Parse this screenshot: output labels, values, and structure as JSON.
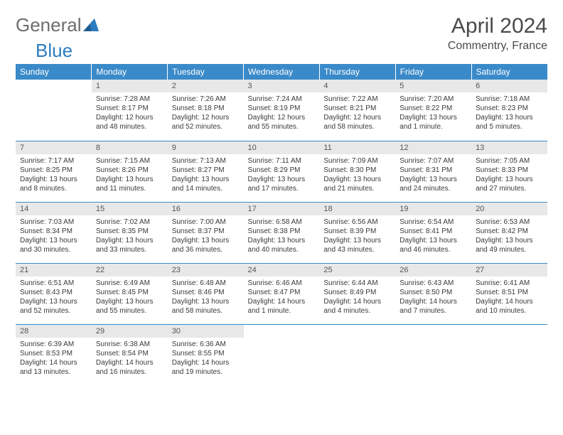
{
  "brand": {
    "part1": "General",
    "part2": "Blue"
  },
  "title": "April 2024",
  "location": "Commentry, France",
  "colors": {
    "header_bg": "#3a8ac9",
    "header_text": "#ffffff",
    "daynum_bg": "#e8e8e8",
    "text": "#3a3a3a",
    "brand_gray": "#6e6e6e",
    "brand_blue": "#2b7bbf",
    "rule": "#3a8ac9"
  },
  "weekdays": [
    "Sunday",
    "Monday",
    "Tuesday",
    "Wednesday",
    "Thursday",
    "Friday",
    "Saturday"
  ],
  "weeks": [
    [
      null,
      {
        "n": "1",
        "sr": "Sunrise: 7:28 AM",
        "ss": "Sunset: 8:17 PM",
        "dl1": "Daylight: 12 hours",
        "dl2": "and 48 minutes."
      },
      {
        "n": "2",
        "sr": "Sunrise: 7:26 AM",
        "ss": "Sunset: 8:18 PM",
        "dl1": "Daylight: 12 hours",
        "dl2": "and 52 minutes."
      },
      {
        "n": "3",
        "sr": "Sunrise: 7:24 AM",
        "ss": "Sunset: 8:19 PM",
        "dl1": "Daylight: 12 hours",
        "dl2": "and 55 minutes."
      },
      {
        "n": "4",
        "sr": "Sunrise: 7:22 AM",
        "ss": "Sunset: 8:21 PM",
        "dl1": "Daylight: 12 hours",
        "dl2": "and 58 minutes."
      },
      {
        "n": "5",
        "sr": "Sunrise: 7:20 AM",
        "ss": "Sunset: 8:22 PM",
        "dl1": "Daylight: 13 hours",
        "dl2": "and 1 minute."
      },
      {
        "n": "6",
        "sr": "Sunrise: 7:18 AM",
        "ss": "Sunset: 8:23 PM",
        "dl1": "Daylight: 13 hours",
        "dl2": "and 5 minutes."
      }
    ],
    [
      {
        "n": "7",
        "sr": "Sunrise: 7:17 AM",
        "ss": "Sunset: 8:25 PM",
        "dl1": "Daylight: 13 hours",
        "dl2": "and 8 minutes."
      },
      {
        "n": "8",
        "sr": "Sunrise: 7:15 AM",
        "ss": "Sunset: 8:26 PM",
        "dl1": "Daylight: 13 hours",
        "dl2": "and 11 minutes."
      },
      {
        "n": "9",
        "sr": "Sunrise: 7:13 AM",
        "ss": "Sunset: 8:27 PM",
        "dl1": "Daylight: 13 hours",
        "dl2": "and 14 minutes."
      },
      {
        "n": "10",
        "sr": "Sunrise: 7:11 AM",
        "ss": "Sunset: 8:29 PM",
        "dl1": "Daylight: 13 hours",
        "dl2": "and 17 minutes."
      },
      {
        "n": "11",
        "sr": "Sunrise: 7:09 AM",
        "ss": "Sunset: 8:30 PM",
        "dl1": "Daylight: 13 hours",
        "dl2": "and 21 minutes."
      },
      {
        "n": "12",
        "sr": "Sunrise: 7:07 AM",
        "ss": "Sunset: 8:31 PM",
        "dl1": "Daylight: 13 hours",
        "dl2": "and 24 minutes."
      },
      {
        "n": "13",
        "sr": "Sunrise: 7:05 AM",
        "ss": "Sunset: 8:33 PM",
        "dl1": "Daylight: 13 hours",
        "dl2": "and 27 minutes."
      }
    ],
    [
      {
        "n": "14",
        "sr": "Sunrise: 7:03 AM",
        "ss": "Sunset: 8:34 PM",
        "dl1": "Daylight: 13 hours",
        "dl2": "and 30 minutes."
      },
      {
        "n": "15",
        "sr": "Sunrise: 7:02 AM",
        "ss": "Sunset: 8:35 PM",
        "dl1": "Daylight: 13 hours",
        "dl2": "and 33 minutes."
      },
      {
        "n": "16",
        "sr": "Sunrise: 7:00 AM",
        "ss": "Sunset: 8:37 PM",
        "dl1": "Daylight: 13 hours",
        "dl2": "and 36 minutes."
      },
      {
        "n": "17",
        "sr": "Sunrise: 6:58 AM",
        "ss": "Sunset: 8:38 PM",
        "dl1": "Daylight: 13 hours",
        "dl2": "and 40 minutes."
      },
      {
        "n": "18",
        "sr": "Sunrise: 6:56 AM",
        "ss": "Sunset: 8:39 PM",
        "dl1": "Daylight: 13 hours",
        "dl2": "and 43 minutes."
      },
      {
        "n": "19",
        "sr": "Sunrise: 6:54 AM",
        "ss": "Sunset: 8:41 PM",
        "dl1": "Daylight: 13 hours",
        "dl2": "and 46 minutes."
      },
      {
        "n": "20",
        "sr": "Sunrise: 6:53 AM",
        "ss": "Sunset: 8:42 PM",
        "dl1": "Daylight: 13 hours",
        "dl2": "and 49 minutes."
      }
    ],
    [
      {
        "n": "21",
        "sr": "Sunrise: 6:51 AM",
        "ss": "Sunset: 8:43 PM",
        "dl1": "Daylight: 13 hours",
        "dl2": "and 52 minutes."
      },
      {
        "n": "22",
        "sr": "Sunrise: 6:49 AM",
        "ss": "Sunset: 8:45 PM",
        "dl1": "Daylight: 13 hours",
        "dl2": "and 55 minutes."
      },
      {
        "n": "23",
        "sr": "Sunrise: 6:48 AM",
        "ss": "Sunset: 8:46 PM",
        "dl1": "Daylight: 13 hours",
        "dl2": "and 58 minutes."
      },
      {
        "n": "24",
        "sr": "Sunrise: 6:46 AM",
        "ss": "Sunset: 8:47 PM",
        "dl1": "Daylight: 14 hours",
        "dl2": "and 1 minute."
      },
      {
        "n": "25",
        "sr": "Sunrise: 6:44 AM",
        "ss": "Sunset: 8:49 PM",
        "dl1": "Daylight: 14 hours",
        "dl2": "and 4 minutes."
      },
      {
        "n": "26",
        "sr": "Sunrise: 6:43 AM",
        "ss": "Sunset: 8:50 PM",
        "dl1": "Daylight: 14 hours",
        "dl2": "and 7 minutes."
      },
      {
        "n": "27",
        "sr": "Sunrise: 6:41 AM",
        "ss": "Sunset: 8:51 PM",
        "dl1": "Daylight: 14 hours",
        "dl2": "and 10 minutes."
      }
    ],
    [
      {
        "n": "28",
        "sr": "Sunrise: 6:39 AM",
        "ss": "Sunset: 8:53 PM",
        "dl1": "Daylight: 14 hours",
        "dl2": "and 13 minutes."
      },
      {
        "n": "29",
        "sr": "Sunrise: 6:38 AM",
        "ss": "Sunset: 8:54 PM",
        "dl1": "Daylight: 14 hours",
        "dl2": "and 16 minutes."
      },
      {
        "n": "30",
        "sr": "Sunrise: 6:36 AM",
        "ss": "Sunset: 8:55 PM",
        "dl1": "Daylight: 14 hours",
        "dl2": "and 19 minutes."
      },
      null,
      null,
      null,
      null
    ]
  ]
}
